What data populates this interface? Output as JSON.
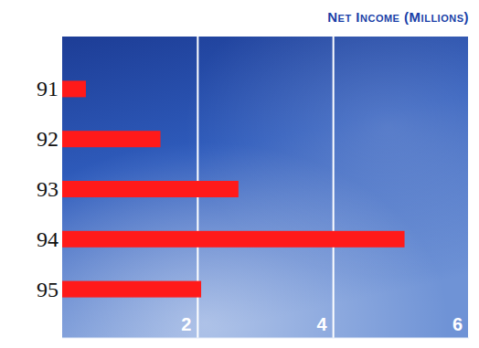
{
  "chart_data": {
    "type": "bar",
    "title": "Net Income (Millions)",
    "orientation": "horizontal",
    "categories": [
      "91",
      "92",
      "93",
      "94",
      "95"
    ],
    "values": [
      0.35,
      1.45,
      2.6,
      5.05,
      2.05
    ],
    "color": "#ff1a1a",
    "xlim": [
      0,
      6
    ],
    "xticks": [
      2,
      4,
      6
    ],
    "grid": true
  }
}
